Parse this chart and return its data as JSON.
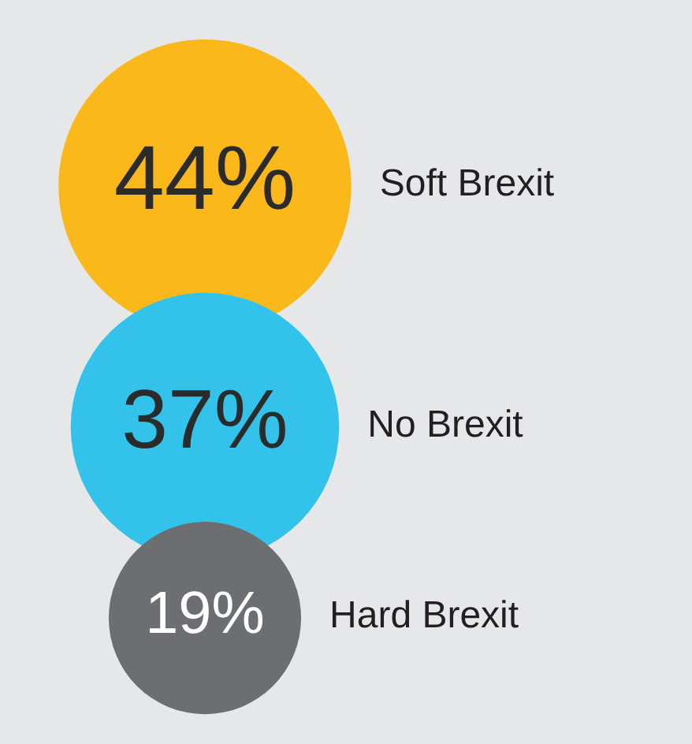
{
  "chart_data": {
    "type": "other",
    "categories": [
      "Soft Brexit",
      "No Brexit",
      "Hard Brexit"
    ],
    "values": [
      44,
      37,
      19
    ],
    "value_labels": [
      "44%",
      "37%",
      "19%"
    ],
    "colors": [
      "#fbb81b",
      "#33c3ea",
      "#6d6e71"
    ]
  }
}
